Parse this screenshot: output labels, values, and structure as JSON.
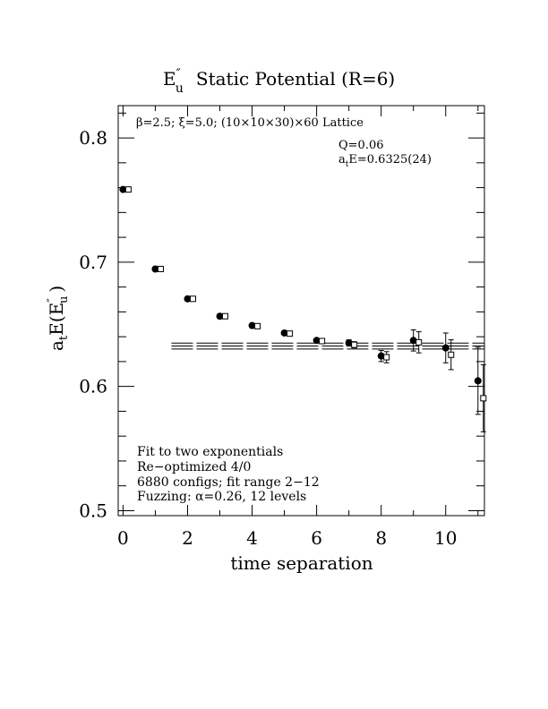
{
  "chart_data": {
    "type": "scatter",
    "title_main": "E",
    "title_super": "″",
    "title_sub": "u",
    "title_rest": "Static Potential (R=6)",
    "xlabel": "time separation",
    "ylabel_main": "a",
    "ylabel_sub": "t",
    "ylabel_mid": "E(E",
    "ylabel_super": "″",
    "ylabel_sub2": "u",
    "ylabel_end": ")",
    "xlim": [
      -0.15,
      11.2
    ],
    "ylim": [
      0.496,
      0.826
    ],
    "x_ticks": [
      0,
      2,
      4,
      6,
      8,
      10
    ],
    "x_tick_labels": [
      "0",
      "2",
      "4",
      "6",
      "8",
      "10"
    ],
    "y_ticks": [
      0.5,
      0.6,
      0.7,
      0.8
    ],
    "y_tick_labels": [
      "0.5",
      "0.6",
      "0.7",
      "0.8"
    ],
    "header_text": "β=2.5; ξ=5.0; (10×10×30)×60 Lattice",
    "fit_q": "Q=0.06",
    "fit_energy_a": "a",
    "fit_energy_sub": "t",
    "fit_energy_rest": "E=0.6325(24)",
    "notes": [
      "Fit to two exponentials",
      "Re−optimized 4/0",
      "6880 configs; fit range 2−12",
      "Fuzzing: α=0.26, 12 levels"
    ],
    "fit_line": {
      "x_range": [
        1.5,
        11.2
      ],
      "value": 0.6325,
      "error": 0.0024
    },
    "series": [
      {
        "marker": "filled-circle",
        "points": [
          {
            "x": 0,
            "y": 0.7585,
            "err": 0.0005
          },
          {
            "x": 1,
            "y": 0.6945,
            "err": 0.0005
          },
          {
            "x": 2,
            "y": 0.6705,
            "err": 0.0007
          },
          {
            "x": 3,
            "y": 0.6565,
            "err": 0.0008
          },
          {
            "x": 4,
            "y": 0.649,
            "err": 0.001
          },
          {
            "x": 5,
            "y": 0.643,
            "err": 0.0012
          },
          {
            "x": 6,
            "y": 0.637,
            "err": 0.0015
          },
          {
            "x": 7,
            "y": 0.635,
            "err": 0.0025
          },
          {
            "x": 8,
            "y": 0.6245,
            "err": 0.0045
          },
          {
            "x": 9,
            "y": 0.637,
            "err": 0.0085
          },
          {
            "x": 10,
            "y": 0.631,
            "err": 0.012
          },
          {
            "x": 11,
            "y": 0.6045,
            "err": 0.027
          }
        ]
      },
      {
        "marker": "open-square",
        "points": [
          {
            "x": 0,
            "y": 0.7585
          },
          {
            "x": 1,
            "y": 0.6945
          },
          {
            "x": 2,
            "y": 0.6705
          },
          {
            "x": 3,
            "y": 0.6565
          },
          {
            "x": 4,
            "y": 0.6485
          },
          {
            "x": 5,
            "y": 0.6425
          },
          {
            "x": 6,
            "y": 0.6365
          },
          {
            "x": 7,
            "y": 0.6335
          },
          {
            "x": 8,
            "y": 0.6235
          },
          {
            "x": 9,
            "y": 0.6355
          },
          {
            "x": 10,
            "y": 0.6255
          },
          {
            "x": 11,
            "y": 0.5905
          }
        ]
      }
    ]
  }
}
